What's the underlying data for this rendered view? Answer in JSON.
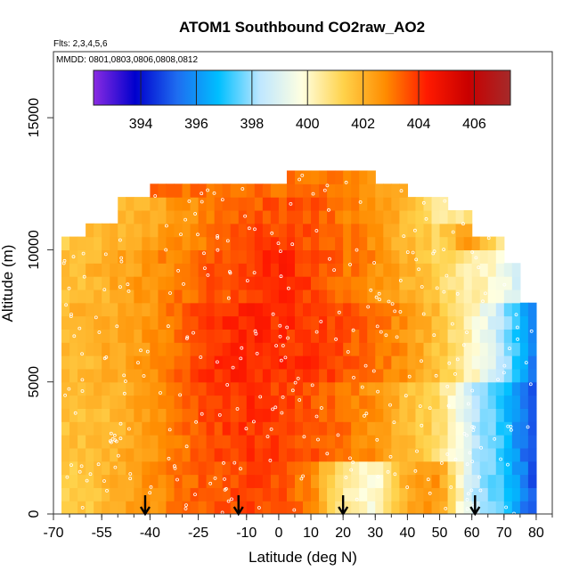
{
  "chart_data": {
    "type": "heatmap",
    "title": "ATOM1 Southbound CO2raw_AO2",
    "flights_note": "Flts: 2,3,4,5,6",
    "dates_note": "MMDD: 0801,0803,0806,0808,0812",
    "xlabel": "Latitude (deg N)",
    "ylabel": "Altitude (m)",
    "xlim": [
      -70,
      85
    ],
    "ylim": [
      0,
      17500
    ],
    "x_ticks": [
      -70,
      -55,
      -40,
      -25,
      -10,
      0,
      10,
      20,
      30,
      40,
      50,
      60,
      70,
      80
    ],
    "y_ticks": [
      0,
      5000,
      10000,
      15000
    ],
    "colorbar": {
      "range": [
        392.3,
        407.3
      ],
      "ticks": [
        394,
        396,
        398,
        400,
        402,
        404,
        406
      ],
      "colors": [
        "#8a2be2",
        "#0000cd",
        "#1e6cf0",
        "#00bfff",
        "#bfe7ff",
        "#ffffe0",
        "#ffd24a",
        "#ff8c00",
        "#ff1a00",
        "#c80000",
        "#a52a2a"
      ]
    },
    "arrow_latitudes": [
      -41.5,
      -12.5,
      20,
      61
    ],
    "data_description": "Curtain of CO2 mixing ratio (ppm) vs latitude and altitude",
    "profile_layers": [
      {
        "alt_bottom": 0,
        "alt_top": 2000,
        "lat": [
          -68,
          -55,
          -40,
          -25,
          -10,
          0,
          10,
          20,
          30,
          40,
          50,
          60,
          70,
          80
        ],
        "co2": [
          401.2,
          401.8,
          402.6,
          403.4,
          403.8,
          403.6,
          403.0,
          400.6,
          399.8,
          402.2,
          402.6,
          398.6,
          397.2,
          394.8
        ]
      },
      {
        "alt_bottom": 2000,
        "alt_top": 5000,
        "lat": [
          -68,
          -55,
          -40,
          -25,
          -10,
          0,
          10,
          20,
          30,
          40,
          50,
          60,
          70,
          80
        ],
        "co2": [
          401.6,
          401.8,
          402.4,
          403.6,
          404.0,
          403.8,
          403.6,
          403.2,
          402.6,
          401.8,
          401.0,
          398.6,
          397.0,
          394.6
        ]
      },
      {
        "alt_bottom": 5000,
        "alt_top": 8000,
        "lat": [
          -68,
          -55,
          -40,
          -25,
          -10,
          0,
          10,
          20,
          30,
          40,
          50,
          60,
          70,
          80
        ],
        "co2": [
          401.8,
          402.0,
          402.6,
          403.8,
          404.2,
          404.0,
          404.0,
          403.6,
          403.2,
          402.6,
          401.6,
          400.2,
          398.2,
          395.2
        ]
      },
      {
        "alt_bottom": 8000,
        "alt_top": 10000,
        "lat": [
          -68,
          -55,
          -40,
          -25,
          -10,
          0,
          10,
          20,
          30,
          40,
          50,
          60,
          70,
          80
        ],
        "co2": [
          401.6,
          402.0,
          402.6,
          403.4,
          403.8,
          404.2,
          403.8,
          403.2,
          402.8,
          402.0,
          401.2,
          400.4,
          399.6,
          397.4
        ]
      },
      {
        "alt_bottom": 10000,
        "alt_top": 11000,
        "lat": [
          -68,
          -55,
          -40,
          -25,
          -10,
          0,
          10,
          20,
          30,
          40,
          50,
          60,
          70,
          80
        ],
        "co2": [
          401.4,
          401.8,
          402.2,
          403.0,
          403.6,
          403.8,
          403.6,
          403.2,
          402.6,
          401.8,
          401.2,
          402.6,
          400.4,
          399.4
        ]
      },
      {
        "alt_bottom": 11000,
        "alt_top": 12000,
        "lat": [
          -55,
          -40,
          -25,
          -10,
          0,
          10,
          20,
          30,
          40,
          50
        ],
        "co2": [
          401.6,
          402.0,
          402.8,
          403.4,
          403.6,
          403.6,
          403.0,
          402.6,
          401.8,
          400.6
        ]
      },
      {
        "alt_bottom": 12000,
        "alt_top": 13500,
        "lat": [
          10,
          20,
          30,
          40
        ],
        "co2": [
          403.2,
          403.0,
          402.4,
          401.8
        ]
      }
    ]
  }
}
